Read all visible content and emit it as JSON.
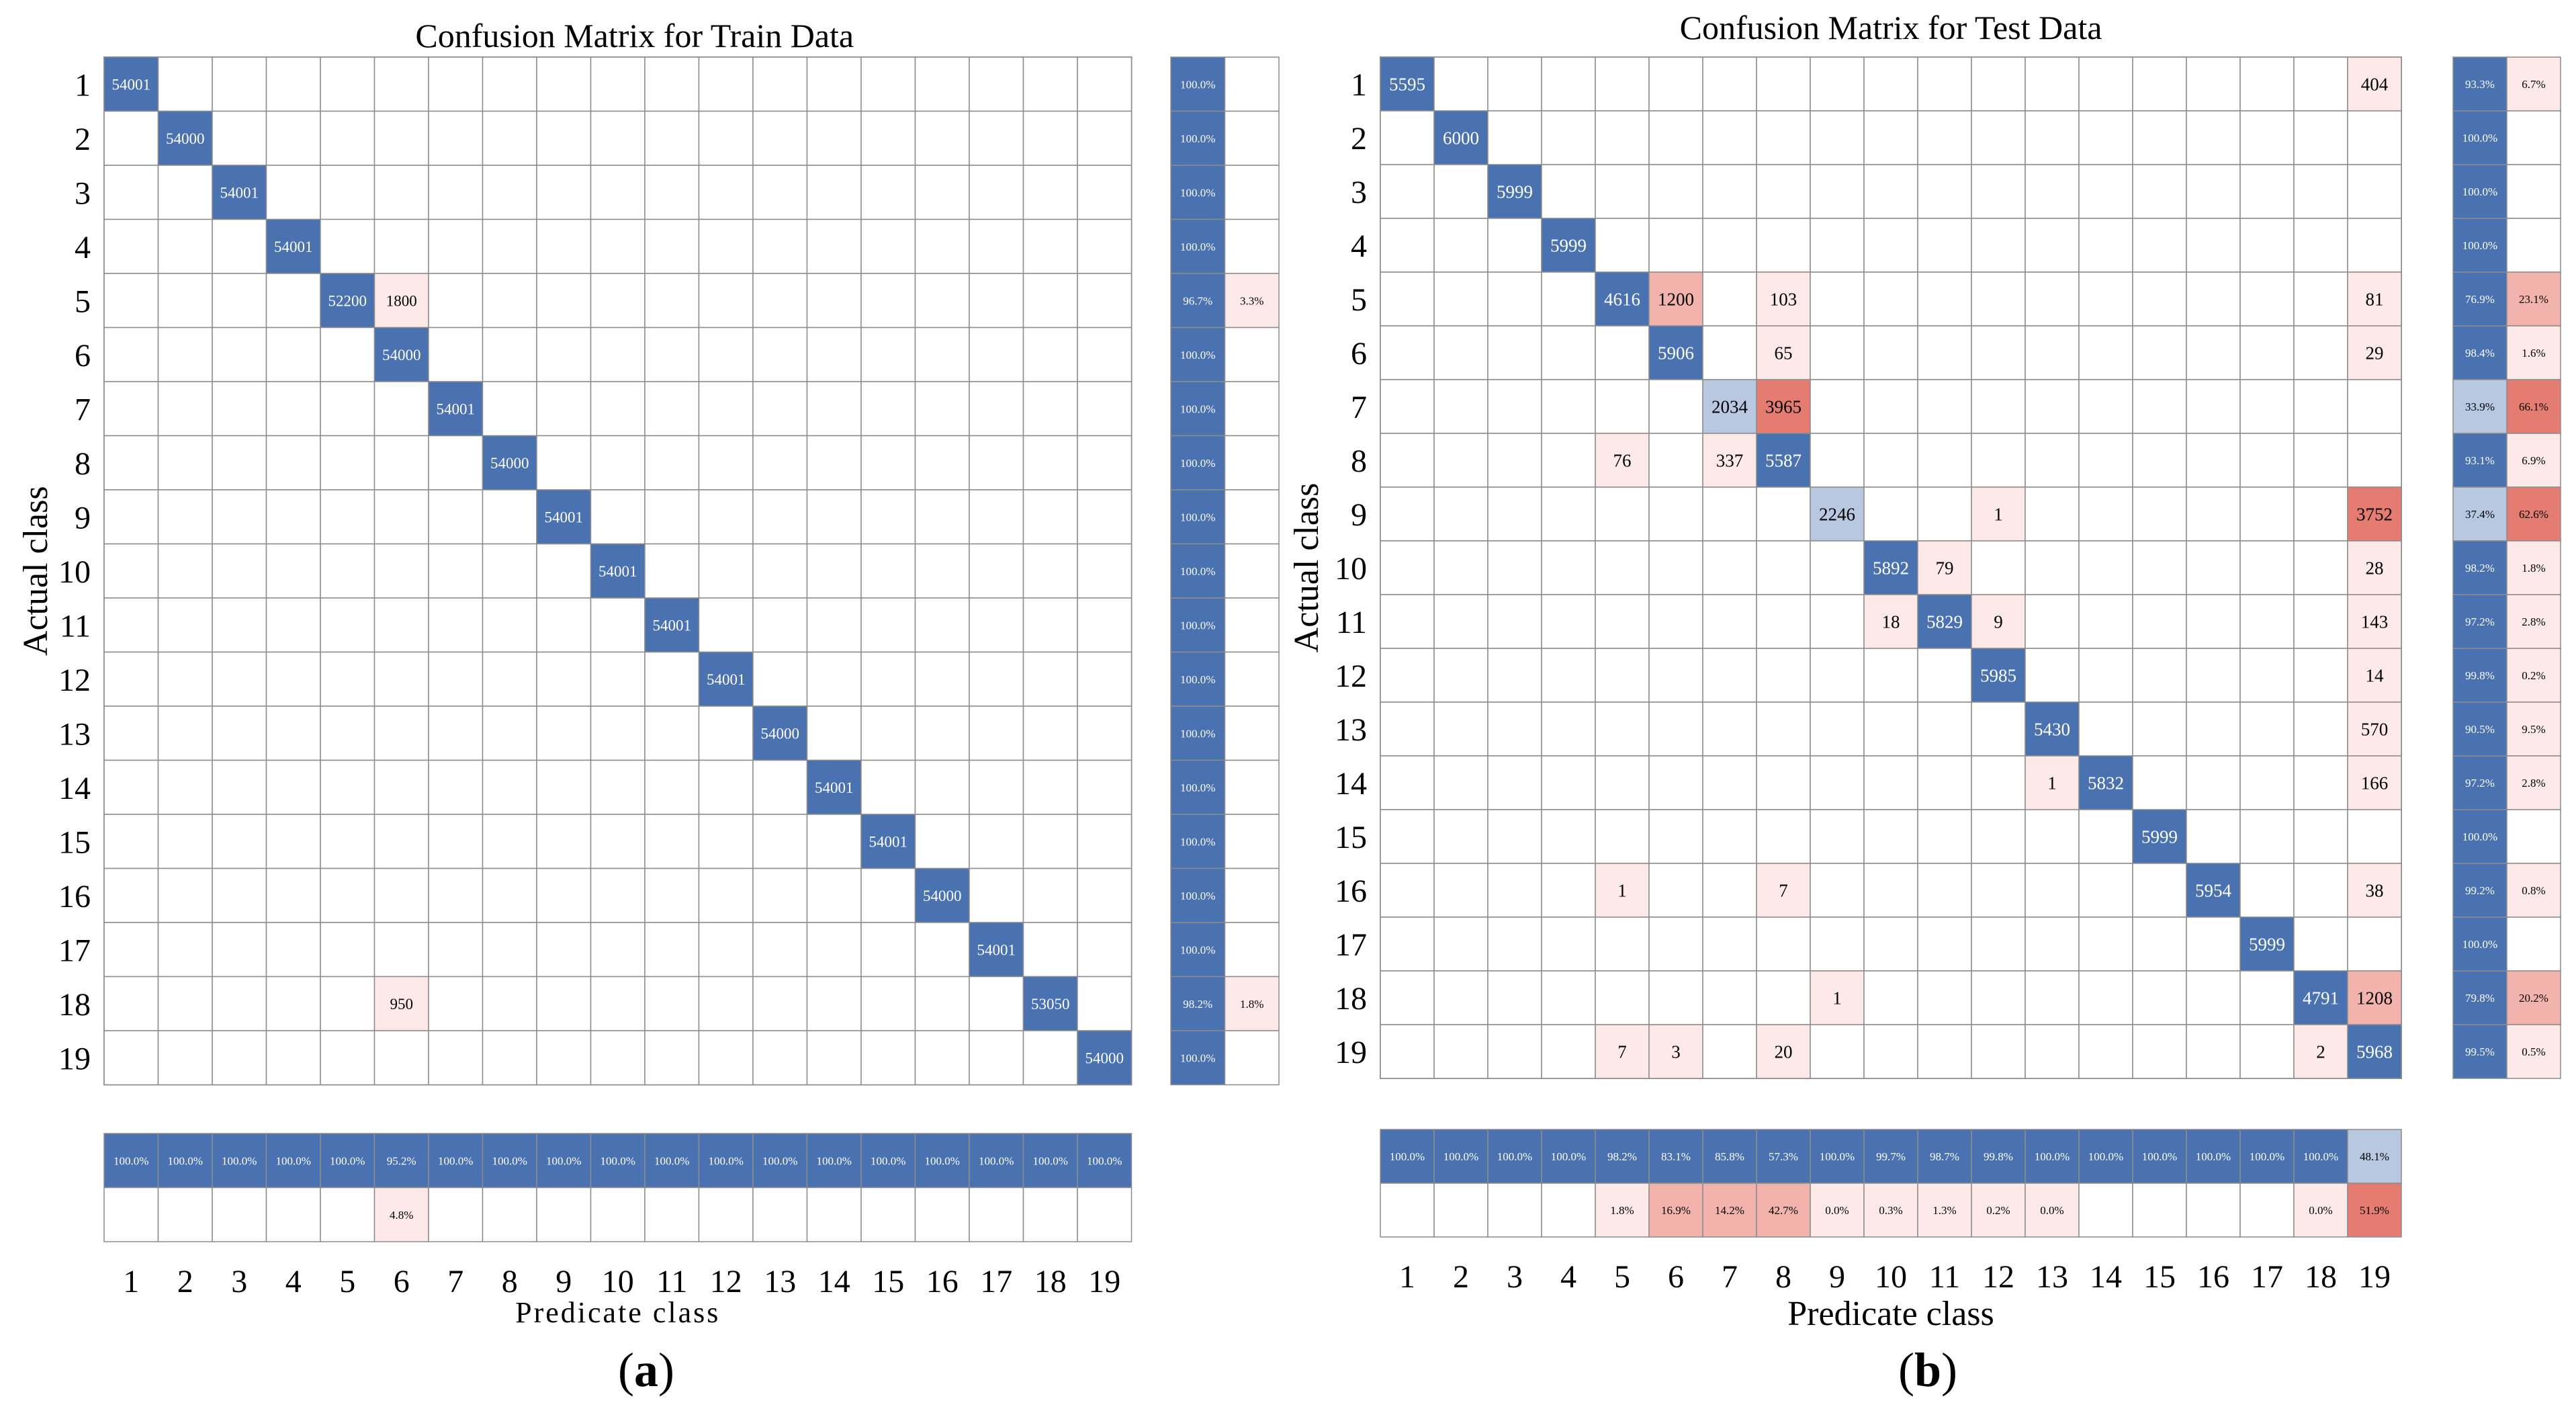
{
  "chart_data": [
    {
      "type": "heatmap",
      "title": "Confusion Matrix for Train Data",
      "panel_label": "a",
      "xlabel": "Predicate class",
      "ylabel": "Actual class",
      "classes": [
        "1",
        "2",
        "3",
        "4",
        "5",
        "6",
        "7",
        "8",
        "9",
        "10",
        "11",
        "12",
        "13",
        "14",
        "15",
        "16",
        "17",
        "18",
        "19"
      ],
      "cells": [
        [
          1,
          1,
          54001
        ],
        [
          2,
          2,
          54000
        ],
        [
          3,
          3,
          54001
        ],
        [
          4,
          4,
          54001
        ],
        [
          5,
          5,
          52200
        ],
        [
          5,
          6,
          1800
        ],
        [
          6,
          6,
          54000
        ],
        [
          7,
          7,
          54001
        ],
        [
          8,
          8,
          54000
        ],
        [
          9,
          9,
          54001
        ],
        [
          10,
          10,
          54001
        ],
        [
          11,
          11,
          54001
        ],
        [
          12,
          12,
          54001
        ],
        [
          13,
          13,
          54000
        ],
        [
          14,
          14,
          54001
        ],
        [
          15,
          15,
          54001
        ],
        [
          16,
          16,
          54000
        ],
        [
          17,
          17,
          54001
        ],
        [
          18,
          6,
          950
        ],
        [
          18,
          18,
          53050
        ],
        [
          19,
          19,
          54000
        ]
      ],
      "row_summary": {
        "correct": [
          "100.0%",
          "100.0%",
          "100.0%",
          "100.0%",
          "96.7%",
          "100.0%",
          "100.0%",
          "100.0%",
          "100.0%",
          "100.0%",
          "100.0%",
          "100.0%",
          "100.0%",
          "100.0%",
          "100.0%",
          "100.0%",
          "100.0%",
          "98.2%",
          "100.0%"
        ],
        "error": [
          "",
          "",
          "",
          "",
          "3.3%",
          "",
          "",
          "",
          "",
          "",
          "",
          "",
          "",
          "",
          "",
          "",
          "",
          "1.8%",
          ""
        ]
      },
      "col_summary": {
        "correct": [
          "100.0%",
          "100.0%",
          "100.0%",
          "100.0%",
          "100.0%",
          "95.2%",
          "100.0%",
          "100.0%",
          "100.0%",
          "100.0%",
          "100.0%",
          "100.0%",
          "100.0%",
          "100.0%",
          "100.0%",
          "100.0%",
          "100.0%",
          "100.0%",
          "100.0%"
        ],
        "error": [
          "",
          "",
          "",
          "",
          "",
          "4.8%",
          "",
          "",
          "",
          "",
          "",
          "",
          "",
          "",
          "",
          "",
          "",
          "",
          ""
        ]
      }
    },
    {
      "type": "heatmap",
      "title": "Confusion Matrix for Test Data",
      "panel_label": "b",
      "xlabel": "Predicate class",
      "ylabel": "Actual class",
      "classes": [
        "1",
        "2",
        "3",
        "4",
        "5",
        "6",
        "7",
        "8",
        "9",
        "10",
        "11",
        "12",
        "13",
        "14",
        "15",
        "16",
        "17",
        "18",
        "19"
      ],
      "cells": [
        [
          1,
          1,
          5595
        ],
        [
          1,
          19,
          404
        ],
        [
          2,
          2,
          6000
        ],
        [
          3,
          3,
          5999
        ],
        [
          4,
          4,
          5999
        ],
        [
          5,
          5,
          4616
        ],
        [
          5,
          6,
          1200
        ],
        [
          5,
          8,
          103
        ],
        [
          5,
          19,
          81
        ],
        [
          6,
          6,
          5906
        ],
        [
          6,
          8,
          65
        ],
        [
          6,
          19,
          29
        ],
        [
          7,
          7,
          2034
        ],
        [
          7,
          8,
          3965
        ],
        [
          8,
          5,
          76
        ],
        [
          8,
          7,
          337
        ],
        [
          8,
          8,
          5587
        ],
        [
          9,
          9,
          2246
        ],
        [
          9,
          12,
          1
        ],
        [
          9,
          19,
          3752
        ],
        [
          10,
          10,
          5892
        ],
        [
          10,
          11,
          79
        ],
        [
          10,
          19,
          28
        ],
        [
          11,
          10,
          18
        ],
        [
          11,
          11,
          5829
        ],
        [
          11,
          12,
          9
        ],
        [
          11,
          19,
          143
        ],
        [
          12,
          12,
          5985
        ],
        [
          12,
          19,
          14
        ],
        [
          13,
          13,
          5430
        ],
        [
          13,
          19,
          570
        ],
        [
          14,
          13,
          1
        ],
        [
          14,
          14,
          5832
        ],
        [
          14,
          19,
          166
        ],
        [
          15,
          15,
          5999
        ],
        [
          16,
          5,
          1
        ],
        [
          16,
          8,
          7
        ],
        [
          16,
          16,
          5954
        ],
        [
          16,
          19,
          38
        ],
        [
          17,
          17,
          5999
        ],
        [
          18,
          9,
          1
        ],
        [
          18,
          18,
          4791
        ],
        [
          18,
          19,
          1208
        ],
        [
          19,
          5,
          7
        ],
        [
          19,
          6,
          3
        ],
        [
          19,
          8,
          20
        ],
        [
          19,
          18,
          2
        ],
        [
          19,
          19,
          5968
        ]
      ],
      "row_summary": {
        "correct": [
          "93.3%",
          "100.0%",
          "100.0%",
          "100.0%",
          "76.9%",
          "98.4%",
          "33.9%",
          "93.1%",
          "37.4%",
          "98.2%",
          "97.2%",
          "99.8%",
          "90.5%",
          "97.2%",
          "100.0%",
          "99.2%",
          "100.0%",
          "79.8%",
          "99.5%"
        ],
        "error": [
          "6.7%",
          "",
          "",
          "",
          "23.1%",
          "1.6%",
          "66.1%",
          "6.9%",
          "62.6%",
          "1.8%",
          "2.8%",
          "0.2%",
          "9.5%",
          "2.8%",
          "",
          "0.8%",
          "",
          "20.2%",
          "0.5%"
        ]
      },
      "col_summary": {
        "correct": [
          "100.0%",
          "100.0%",
          "100.0%",
          "100.0%",
          "98.2%",
          "83.1%",
          "85.8%",
          "57.3%",
          "100.0%",
          "99.7%",
          "98.7%",
          "99.8%",
          "100.0%",
          "100.0%",
          "100.0%",
          "100.0%",
          "100.0%",
          "100.0%",
          "48.1%"
        ],
        "error": [
          "",
          "",
          "",
          "",
          "1.8%",
          "16.9%",
          "14.2%",
          "42.7%",
          "0.0%",
          "0.3%",
          "1.3%",
          "0.2%",
          "0.0%",
          "",
          "",
          "",
          "",
          "0.0%",
          "51.9%"
        ]
      }
    }
  ],
  "colors": {
    "strong_blue": "#4a72b0",
    "light_blue": "#b8c8e0",
    "strong_red": "#e47c72",
    "medium_red": "#f2b3ad",
    "light_red": "#fde9e7",
    "grid": "#8c8c8c"
  }
}
